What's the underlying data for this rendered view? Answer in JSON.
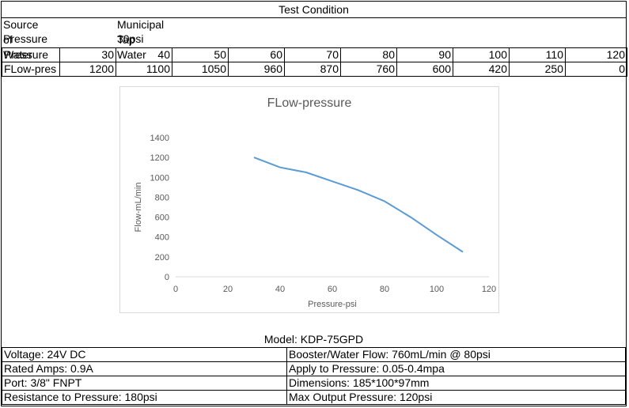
{
  "header": {
    "title": "Test Condition"
  },
  "conditions": [
    {
      "label": "Source of Water",
      "value": "Municipal Tap Water"
    },
    {
      "label": "Pressure",
      "value": "30psi"
    }
  ],
  "table": {
    "rows": [
      {
        "label": "Pressure",
        "values": [
          "30",
          "40",
          "50",
          "60",
          "70",
          "80",
          "90",
          "100",
          "110",
          "120"
        ]
      },
      {
        "label": "FLow-pres",
        "values": [
          "1200",
          "1100",
          "1050",
          "960",
          "870",
          "760",
          "600",
          "420",
          "250",
          "0"
        ]
      }
    ]
  },
  "chart_data": {
    "type": "line",
    "title": "FLow-pressure",
    "xlabel": "Pressure-psi",
    "ylabel": "Flow-mL/min",
    "xlim": [
      0,
      120
    ],
    "ylim": [
      0,
      1400
    ],
    "xticks": [
      "0",
      "20",
      "40",
      "60",
      "80",
      "100",
      "120"
    ],
    "yticks": [
      "0",
      "200",
      "400",
      "600",
      "800",
      "1000",
      "1200",
      "1400"
    ],
    "grid": false,
    "line_color": "#5b9bd5",
    "series": [
      {
        "x": [
          30,
          40,
          50,
          60,
          70,
          80,
          90,
          100,
          110
        ],
        "y": [
          1200,
          1100,
          1050,
          960,
          870,
          760,
          600,
          420,
          250
        ]
      }
    ]
  },
  "model": "Model: KDP-75GPD",
  "specs": [
    {
      "left": "Voltage: 24V DC",
      "right": "Booster/Water Flow: 760mL/min @ 80psi"
    },
    {
      "left": "Rated Amps: 0.9A",
      "right": "Apply to Pressure: 0.05-0.4mpa"
    },
    {
      "left": "Port: 3/8\" FNPT",
      "right": "Dimensions: 185*100*97mm"
    },
    {
      "left": "Resistance to Pressure: 180psi",
      "right": "Max Output Pressure: 120psi"
    }
  ]
}
